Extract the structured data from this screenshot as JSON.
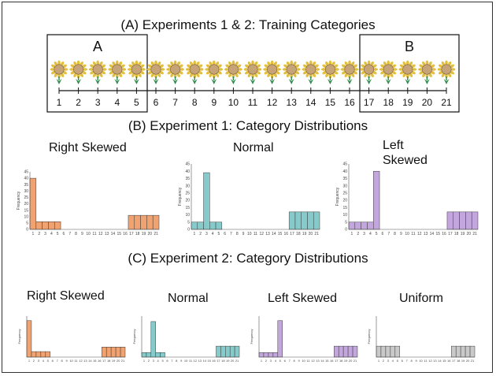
{
  "section_a": {
    "title": "(A) Experiments 1 & 2: Training Categories",
    "box_a_label": "A",
    "box_b_label": "B",
    "stimulus_numbers": [
      "1",
      "2",
      "3",
      "4",
      "5",
      "6",
      "7",
      "8",
      "9",
      "10",
      "11",
      "12",
      "13",
      "14",
      "15",
      "16",
      "17",
      "18",
      "19",
      "20",
      "21"
    ]
  },
  "section_b": {
    "title": "(B) Experiment 1: Category Distributions",
    "labels": [
      "Right Skewed",
      "Normal",
      "Left\nSkewed"
    ]
  },
  "section_c": {
    "title": "(C) Experiment 2: Category Distributions",
    "labels": [
      "Right Skewed",
      "Normal",
      "Left Skewed",
      "Uniform"
    ]
  },
  "colors": {
    "orange": "#f0a270",
    "teal": "#86cbcb",
    "purple": "#c3a6de",
    "gray": "#c9c9c9",
    "petal": "#e2bf3f",
    "center": "#c7a477",
    "stem": "#2e8a4c"
  },
  "chart_data": [
    {
      "type": "bar",
      "title": "Right Skewed",
      "ylabel": "Frequency",
      "ylim": [
        0,
        45
      ],
      "yticks": [
        "0",
        "5",
        "10",
        "15",
        "20",
        "25",
        "30",
        "35",
        "40",
        "45"
      ],
      "categories": [
        "1",
        "2",
        "3",
        "4",
        "5",
        "6",
        "7",
        "8",
        "9",
        "10",
        "11",
        "12",
        "13",
        "14",
        "15",
        "16",
        "17",
        "18",
        "19",
        "20",
        "21"
      ],
      "values": [
        40,
        6,
        6,
        6,
        6,
        0,
        0,
        0,
        0,
        0,
        0,
        0,
        0,
        0,
        0,
        0,
        11,
        11,
        11,
        11,
        11
      ]
    },
    {
      "type": "bar",
      "title": "Normal",
      "ylabel": "Frequency",
      "ylim": [
        0,
        45
      ],
      "yticks": [
        "0",
        "5",
        "10",
        "15",
        "20",
        "25",
        "30",
        "35",
        "40",
        "45"
      ],
      "categories": [
        "1",
        "2",
        "3",
        "4",
        "5",
        "6",
        "7",
        "8",
        "9",
        "10",
        "11",
        "12",
        "13",
        "14",
        "15",
        "16",
        "17",
        "18",
        "19",
        "20",
        "21"
      ],
      "values": [
        5,
        5,
        39,
        5,
        5,
        0,
        0,
        0,
        0,
        0,
        0,
        0,
        0,
        0,
        0,
        0,
        12,
        12,
        12,
        12,
        12
      ]
    },
    {
      "type": "bar",
      "title": "Left Skewed",
      "ylabel": "Frequency",
      "ylim": [
        0,
        45
      ],
      "yticks": [
        "0",
        "5",
        "10",
        "15",
        "20",
        "25",
        "30",
        "35",
        "40",
        "45"
      ],
      "categories": [
        "1",
        "2",
        "3",
        "4",
        "5",
        "6",
        "7",
        "8",
        "9",
        "10",
        "11",
        "12",
        "13",
        "14",
        "15",
        "16",
        "17",
        "18",
        "19",
        "20",
        "21"
      ],
      "values": [
        5,
        5,
        5,
        5,
        40,
        0,
        0,
        0,
        0,
        0,
        0,
        0,
        0,
        0,
        0,
        0,
        12,
        12,
        12,
        12,
        12
      ]
    },
    {
      "type": "bar",
      "title": "Right Skewed",
      "ylabel": "Frequency",
      "ylim": [
        0,
        45
      ],
      "categories": [
        "1",
        "2",
        "3",
        "4",
        "5",
        "6",
        "7",
        "8",
        "9",
        "10",
        "11",
        "12",
        "13",
        "14",
        "15",
        "16",
        "17",
        "18",
        "19",
        "20",
        "21"
      ],
      "values": [
        40,
        6,
        6,
        6,
        6,
        0,
        0,
        0,
        0,
        0,
        0,
        0,
        0,
        0,
        0,
        0,
        11,
        11,
        11,
        11,
        11
      ]
    },
    {
      "type": "bar",
      "title": "Normal",
      "ylabel": "Frequency",
      "ylim": [
        0,
        45
      ],
      "categories": [
        "1",
        "2",
        "3",
        "4",
        "5",
        "6",
        "7",
        "8",
        "9",
        "10",
        "11",
        "12",
        "13",
        "14",
        "15",
        "16",
        "17",
        "18",
        "19",
        "20",
        "21"
      ],
      "values": [
        5,
        5,
        39,
        5,
        5,
        0,
        0,
        0,
        0,
        0,
        0,
        0,
        0,
        0,
        0,
        0,
        12,
        12,
        12,
        12,
        12
      ]
    },
    {
      "type": "bar",
      "title": "Left Skewed",
      "ylabel": "Frequency",
      "ylim": [
        0,
        45
      ],
      "categories": [
        "1",
        "2",
        "3",
        "4",
        "5",
        "6",
        "7",
        "8",
        "9",
        "10",
        "11",
        "12",
        "13",
        "14",
        "15",
        "16",
        "17",
        "18",
        "19",
        "20",
        "21"
      ],
      "values": [
        5,
        5,
        5,
        5,
        40,
        0,
        0,
        0,
        0,
        0,
        0,
        0,
        0,
        0,
        0,
        0,
        12,
        12,
        12,
        12,
        12
      ]
    },
    {
      "type": "bar",
      "title": "Uniform",
      "ylabel": "Frequency",
      "ylim": [
        0,
        45
      ],
      "categories": [
        "1",
        "2",
        "3",
        "4",
        "5",
        "6",
        "7",
        "8",
        "9",
        "10",
        "11",
        "12",
        "13",
        "14",
        "15",
        "16",
        "17",
        "18",
        "19",
        "20",
        "21"
      ],
      "values": [
        12,
        12,
        12,
        12,
        12,
        0,
        0,
        0,
        0,
        0,
        0,
        0,
        0,
        0,
        0,
        0,
        12,
        12,
        12,
        12,
        12
      ]
    }
  ]
}
